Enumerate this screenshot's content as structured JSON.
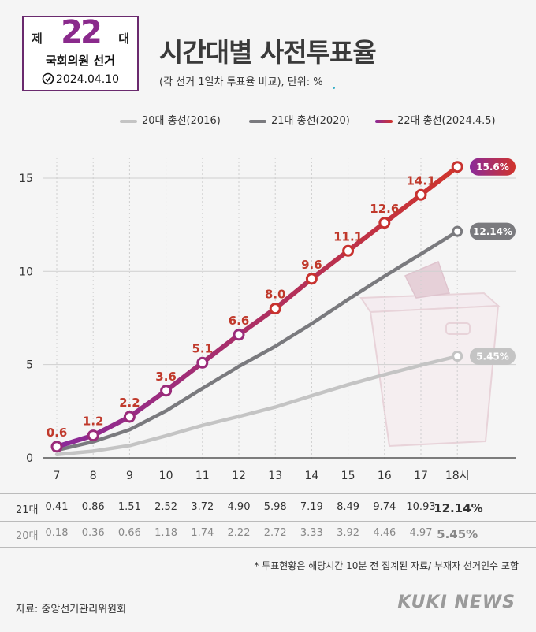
{
  "badge": {
    "je": "제",
    "number": "22",
    "dae": "대",
    "subtitle": "국회의원 선거",
    "date": "2024.04.10"
  },
  "title": "시간대별 사전투표율",
  "subtitle": "(각 선거 1일차 투표율 비교), 단위: %",
  "legend": [
    {
      "label": "20대 총선(2016)",
      "color": "#c4c4c4"
    },
    {
      "label": "21대 총선(2020)",
      "color": "#7a7a7e"
    },
    {
      "label": "22대 총선(2024.4.5)",
      "color": "#b23040"
    }
  ],
  "colors": {
    "s20": "#c4c4c4",
    "s21": "#7a7a7e",
    "s22_start": "#8a2a9a",
    "s22_end": "#d0342c",
    "label22": "#c0392b"
  },
  "chart_data": {
    "type": "line",
    "x": [
      "7",
      "8",
      "9",
      "10",
      "11",
      "12",
      "13",
      "14",
      "15",
      "16",
      "17",
      "18시"
    ],
    "y_ticks": [
      "0",
      "5",
      "10",
      "15"
    ],
    "ylim": [
      0,
      16.5
    ],
    "grid": true,
    "series": [
      {
        "name": "20대 총선(2016)",
        "values": [
          0.18,
          0.36,
          0.66,
          1.18,
          1.74,
          2.22,
          2.72,
          3.33,
          3.92,
          4.46,
          4.97,
          5.45
        ],
        "end_label": "5.45%"
      },
      {
        "name": "21대 총선(2020)",
        "values": [
          0.41,
          0.86,
          1.51,
          2.52,
          3.72,
          4.9,
          5.98,
          7.19,
          8.49,
          9.74,
          10.93,
          12.14
        ],
        "end_label": "12.14%"
      },
      {
        "name": "22대 총선(2024.4.5)",
        "values": [
          0.6,
          1.2,
          2.2,
          3.6,
          5.1,
          6.6,
          8.0,
          9.6,
          11.1,
          12.6,
          14.1,
          15.6
        ],
        "point_labels": [
          "0.6",
          "1.2",
          "2.2",
          "3.6",
          "5.1",
          "6.6",
          "8.0",
          "9.6",
          "11.1",
          "12.6",
          "14.1"
        ],
        "end_label": "15.6%"
      }
    ]
  },
  "table": {
    "rows": [
      {
        "label": "21대",
        "values": [
          "0.41",
          "0.86",
          "1.51",
          "2.52",
          "3.72",
          "4.90",
          "5.98",
          "7.19",
          "8.49",
          "9.74",
          "10.93",
          "12.14%"
        ],
        "color": "#333333"
      },
      {
        "label": "20대",
        "values": [
          "0.18",
          "0.36",
          "0.66",
          "1.18",
          "1.74",
          "2.22",
          "2.72",
          "3.33",
          "3.92",
          "4.46",
          "4.97",
          "5.45%"
        ],
        "color": "#888888"
      }
    ]
  },
  "note": "* 투표현황은 해당시간 10분 전 집계된 자료/ 부재자 선거인수 포함",
  "source": "자료: 중앙선거관리위원회",
  "brand": "KUKI NEWS",
  "icons": {
    "ballot_box": "ballot-box-icon",
    "checkmark": "checkmark-icon"
  }
}
